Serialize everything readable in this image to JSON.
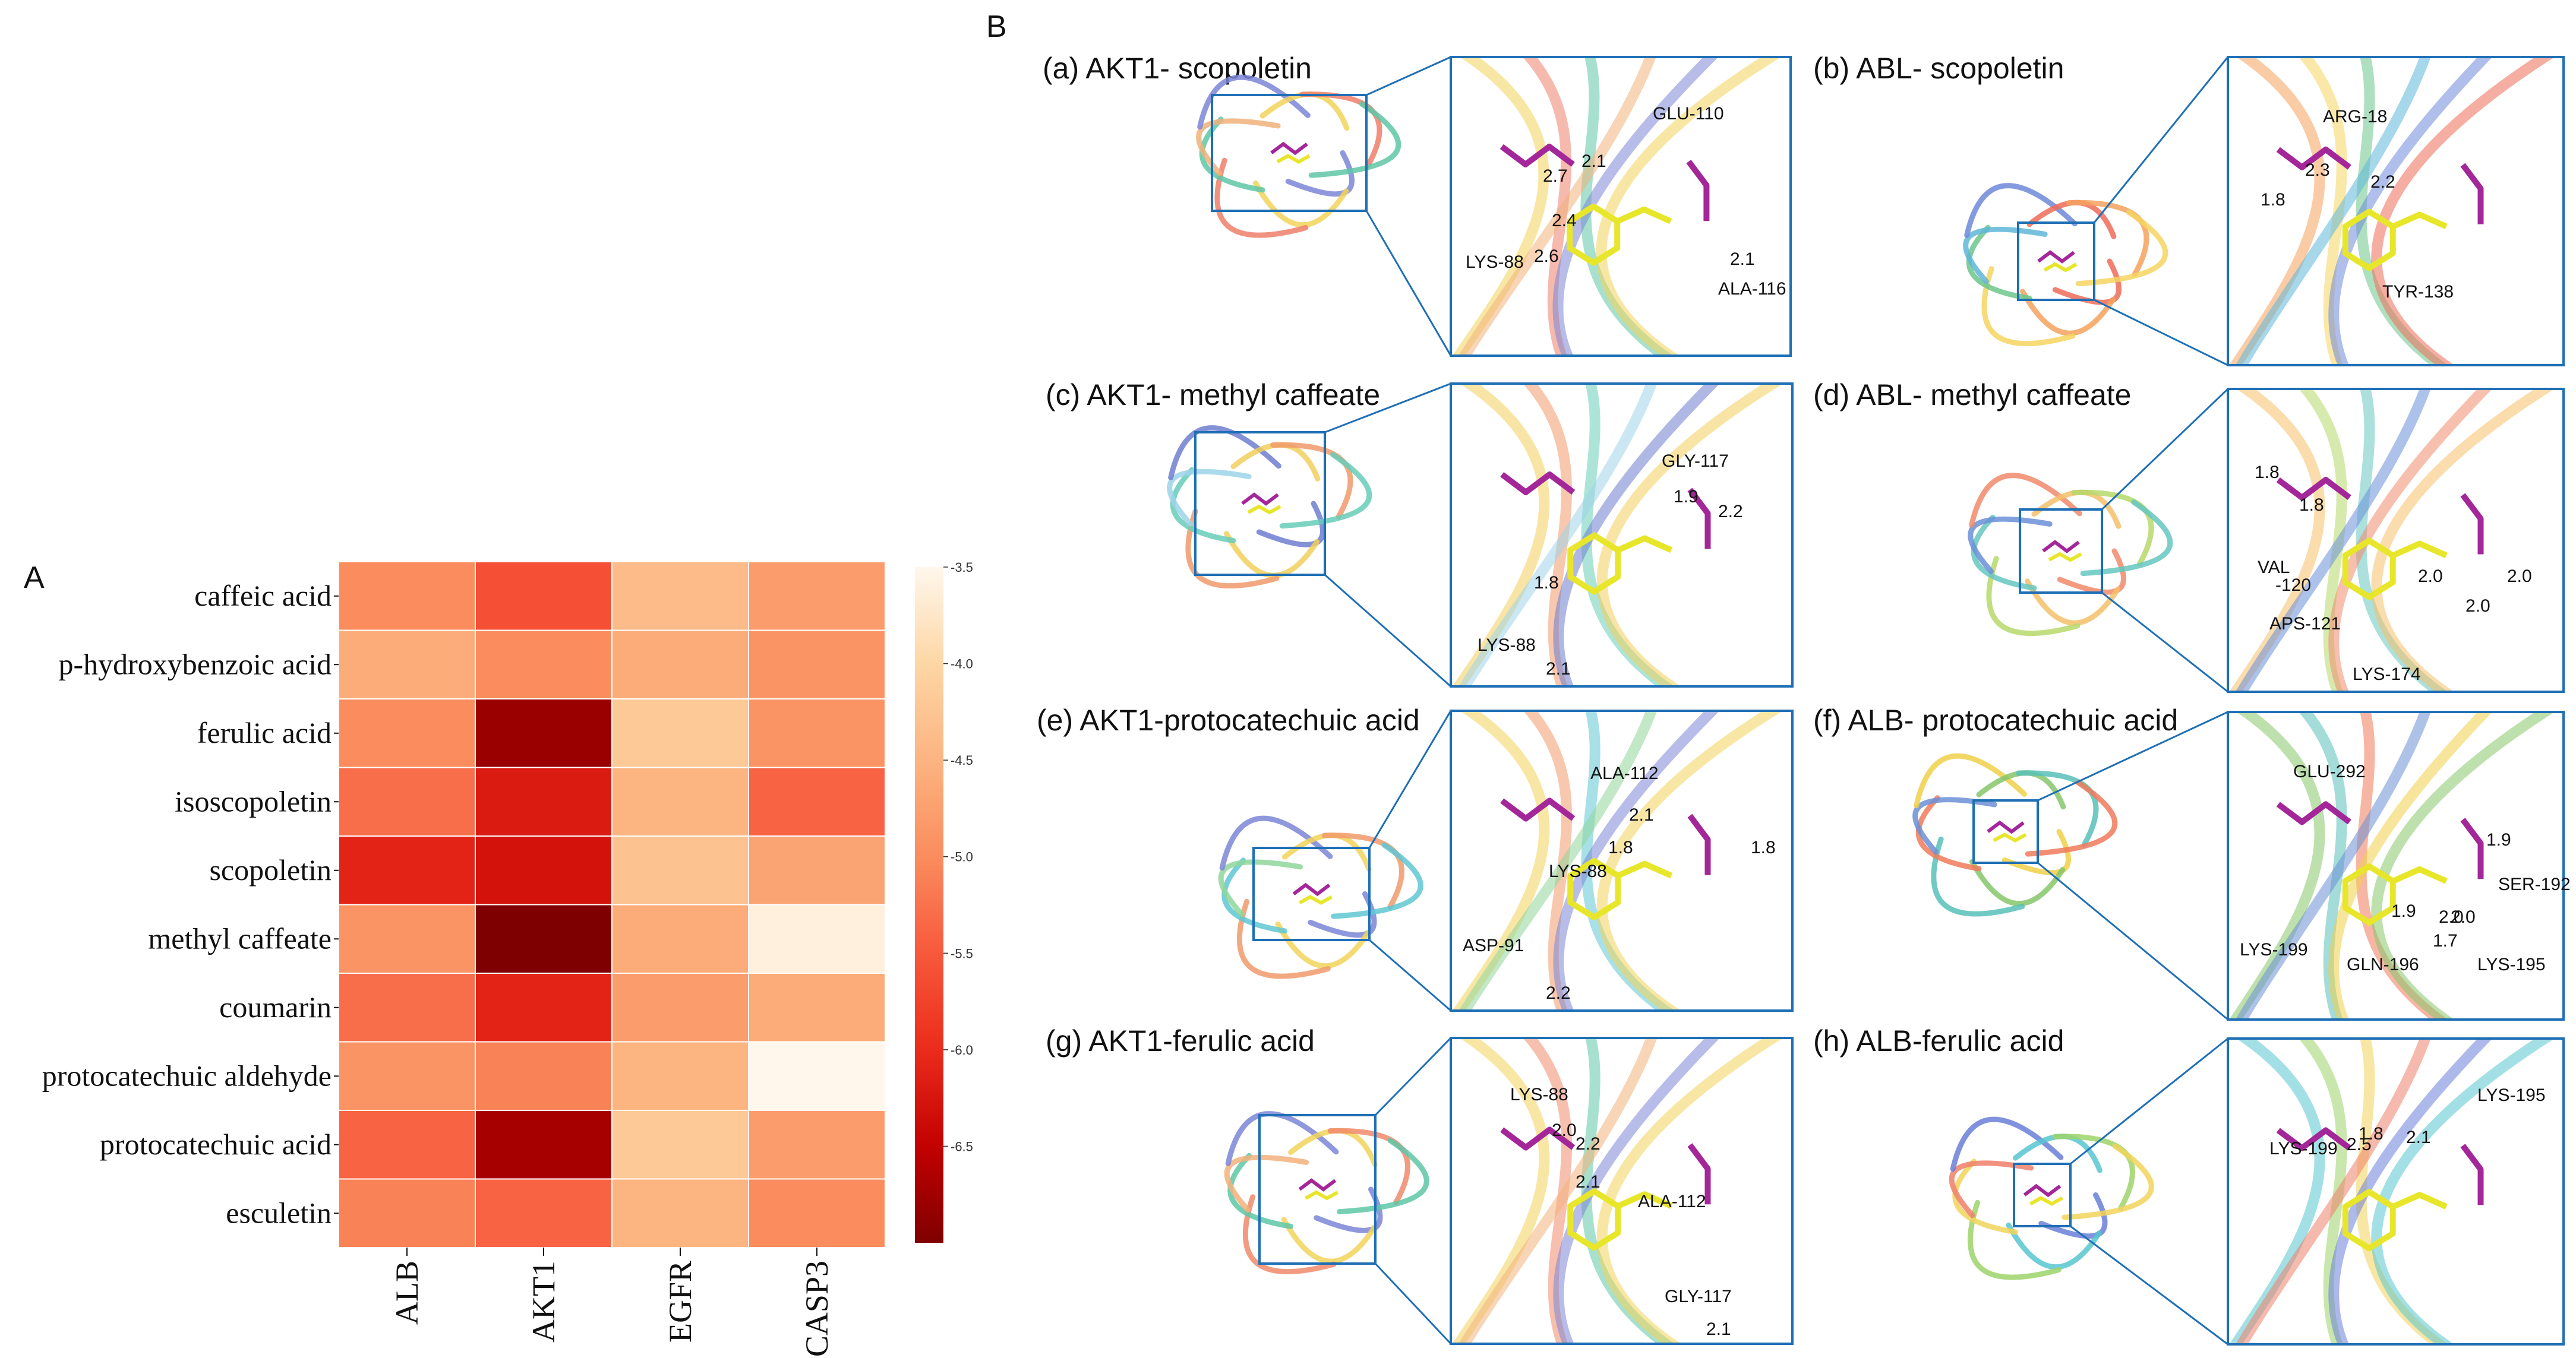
{
  "labels": {
    "section_a": "A",
    "section_b": "B"
  },
  "chart_data": {
    "type": "heatmap",
    "title": "",
    "rows": [
      "caffeic acid",
      "p-hydroxybenzoic acid",
      "ferulic acid",
      "isoscopoletin",
      "scopoletin",
      "methyl caffeate",
      "coumarin",
      "protocatechuic aldehyde",
      "protocatechuic acid",
      "esculetin"
    ],
    "columns": [
      "ALB",
      "AKT1",
      "EGFR",
      "CASP3"
    ],
    "values": [
      [
        -5.0,
        -5.6,
        -4.4,
        -4.8
      ],
      [
        -4.6,
        -5.0,
        -4.6,
        -4.9
      ],
      [
        -5.0,
        -6.8,
        -4.2,
        -4.9
      ],
      [
        -5.3,
        -6.2,
        -4.5,
        -5.4
      ],
      [
        -6.1,
        -6.3,
        -4.3,
        -4.7
      ],
      [
        -4.9,
        -7.0,
        -4.6,
        -3.6
      ],
      [
        -5.3,
        -6.1,
        -4.8,
        -4.6
      ],
      [
        -4.9,
        -5.1,
        -4.5,
        -3.5
      ],
      [
        -5.4,
        -6.7,
        -4.2,
        -4.8
      ],
      [
        -5.1,
        -5.4,
        -4.5,
        -5.0
      ]
    ],
    "colorbar": {
      "min": -7.0,
      "max": -3.5,
      "ticks": [
        "-3.5",
        "-4.0",
        "-4.5",
        "-5.0",
        "-5.5",
        "-6.0",
        "-6.5"
      ],
      "colormap": "OrRd-reversed"
    }
  },
  "docking": {
    "colors": {
      "ligand": "#e8e62a",
      "residue": "#a4279a",
      "frame": "#1f6fb5"
    },
    "panels": [
      {
        "title": "(a) AKT1- scopoletin",
        "residues": [
          "GLU-110",
          "LYS-88",
          "ALA-116"
        ],
        "distances": [
          "2.7",
          "2.1",
          "2.4",
          "2.6",
          "2.1"
        ]
      },
      {
        "title": "(b) ABL- scopoletin",
        "residues": [
          "ARG-18",
          "TYR-138"
        ],
        "distances": [
          "2.3",
          "2.2",
          "1.8"
        ]
      },
      {
        "title": "(c) AKT1- methyl caffeate",
        "residues": [
          "GLY-117",
          "LYS-88"
        ],
        "distances": [
          "1.9",
          "2.2",
          "1.8",
          "2.1"
        ]
      },
      {
        "title": "(d) ABL- methyl caffeate",
        "residues": [
          "VAL",
          "-120",
          "APS-121",
          "LYS-174"
        ],
        "distances": [
          "1.8",
          "1.8",
          "2.0",
          "2.0",
          "2.0"
        ]
      },
      {
        "title": "(e) AKT1-protocatechuic acid",
        "residues": [
          "ALA-112",
          "LYS-88",
          "ASP-91"
        ],
        "distances": [
          "2.1",
          "1.8",
          "1.8",
          "2.2"
        ]
      },
      {
        "title": "(f) ALB- protocatechuic acid",
        "residues": [
          "GLU-292",
          "SER-192",
          "LYS-199",
          "GLN-196",
          "LYS-195"
        ],
        "distances": [
          "1.9",
          "2.0",
          "1.9",
          "2.0",
          "1.7"
        ]
      },
      {
        "title": "(g) AKT1-ferulic acid",
        "residues": [
          "LYS-88",
          "ALA-112",
          "GLY-117"
        ],
        "distances": [
          "2.0",
          "2.2",
          "2.1",
          "2.1"
        ]
      },
      {
        "title": "(h) ALB-ferulic acid",
        "residues": [
          "LYS-195",
          "LYS-199"
        ],
        "distances": [
          "2.5",
          "1.8",
          "2.1"
        ]
      }
    ]
  }
}
